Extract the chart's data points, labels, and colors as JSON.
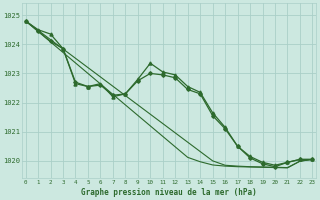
{
  "hours": [
    0,
    1,
    2,
    3,
    4,
    5,
    6,
    7,
    8,
    9,
    10,
    11,
    12,
    13,
    14,
    15,
    16,
    17,
    18,
    19,
    20,
    21,
    22,
    23
  ],
  "series_main": [
    1024.8,
    1024.5,
    1024.35,
    1023.85,
    1022.65,
    1022.55,
    1022.65,
    1022.2,
    1022.3,
    1022.8,
    1023.35,
    1023.05,
    1022.95,
    1022.55,
    1022.35,
    1021.65,
    1021.15,
    1020.5,
    1020.15,
    1019.95,
    1019.85,
    1019.95,
    1020.05,
    1020.05
  ],
  "series_alt": [
    1024.8,
    1024.45,
    1024.1,
    1023.85,
    1022.7,
    1022.55,
    1022.6,
    1022.25,
    1022.3,
    1022.75,
    1023.0,
    1022.95,
    1022.85,
    1022.45,
    1022.3,
    1021.55,
    1021.1,
    1020.5,
    1020.1,
    1019.9,
    1019.8,
    1019.95,
    1020.05,
    1020.05
  ],
  "line_a": [
    1024.8,
    1024.48,
    1024.16,
    1023.84,
    1023.52,
    1023.2,
    1022.88,
    1022.56,
    1022.24,
    1021.92,
    1021.6,
    1021.28,
    1020.96,
    1020.64,
    1020.32,
    1020.0,
    1019.85,
    1019.82,
    1019.8,
    1019.79,
    1019.78,
    1019.77,
    1019.99,
    1020.05
  ],
  "line_b": [
    1024.8,
    1024.44,
    1024.08,
    1023.72,
    1023.36,
    1023.0,
    1022.64,
    1022.28,
    1021.92,
    1021.56,
    1021.2,
    1020.84,
    1020.48,
    1020.12,
    1019.97,
    1019.86,
    1019.82,
    1019.8,
    1019.79,
    1019.78,
    1019.77,
    1019.76,
    1019.99,
    1020.05
  ],
  "bg_color": "#cce8e0",
  "line_color": "#2d6a2d",
  "grid_color": "#aacfc8",
  "title": "Graphe pression niveau de la mer (hPa)",
  "ylim_min": 1019.4,
  "ylim_max": 1025.4,
  "yticks": [
    1020,
    1021,
    1022,
    1023,
    1024,
    1025
  ]
}
